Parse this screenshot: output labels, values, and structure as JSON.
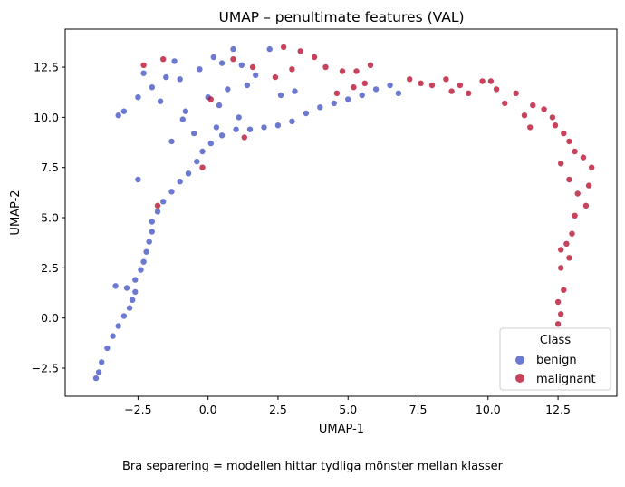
{
  "chart_data": {
    "type": "scatter",
    "title": "UMAP – penultimate features (VAL)",
    "xlabel": "UMAP-1",
    "ylabel": "UMAP-2",
    "xlim": [
      -5.1,
      14.6
    ],
    "ylim": [
      -3.9,
      14.4
    ],
    "xticks": [
      -2.5,
      0.0,
      2.5,
      5.0,
      7.5,
      10.0,
      12.5
    ],
    "xtick_labels": [
      "−2.5",
      "0.0",
      "2.5",
      "5.0",
      "7.5",
      "10.0",
      "12.5"
    ],
    "yticks": [
      -2.5,
      0.0,
      2.5,
      5.0,
      7.5,
      10.0,
      12.5
    ],
    "ytick_labels": [
      "−2.5",
      "0.0",
      "2.5",
      "5.0",
      "7.5",
      "10.0",
      "12.5"
    ],
    "grid": false,
    "legend": {
      "title": "Class",
      "placement": "lower right"
    },
    "series": [
      {
        "name": "benign",
        "color": "#3b4cc0",
        "points": [
          [
            -4.0,
            -3.0
          ],
          [
            -3.9,
            -2.7
          ],
          [
            -3.8,
            -2.2
          ],
          [
            -3.6,
            -1.5
          ],
          [
            -3.4,
            -0.9
          ],
          [
            -3.2,
            -0.4
          ],
          [
            -3.0,
            0.1
          ],
          [
            -2.8,
            0.5
          ],
          [
            -2.7,
            0.9
          ],
          [
            -2.6,
            1.3
          ],
          [
            -3.3,
            1.6
          ],
          [
            -2.9,
            1.5
          ],
          [
            -2.6,
            1.9
          ],
          [
            -2.4,
            2.4
          ],
          [
            -2.3,
            2.8
          ],
          [
            -2.2,
            3.3
          ],
          [
            -2.1,
            3.8
          ],
          [
            -2.0,
            4.3
          ],
          [
            -2.0,
            4.8
          ],
          [
            -1.8,
            5.3
          ],
          [
            -1.6,
            5.8
          ],
          [
            -1.3,
            6.3
          ],
          [
            -1.0,
            6.8
          ],
          [
            -0.7,
            7.2
          ],
          [
            -0.4,
            7.8
          ],
          [
            -0.2,
            8.3
          ],
          [
            0.1,
            8.7
          ],
          [
            0.5,
            9.1
          ],
          [
            1.0,
            9.4
          ],
          [
            1.5,
            9.4
          ],
          [
            2.0,
            9.5
          ],
          [
            2.5,
            9.6
          ],
          [
            3.0,
            9.8
          ],
          [
            3.5,
            10.2
          ],
          [
            4.0,
            10.5
          ],
          [
            4.5,
            10.7
          ],
          [
            5.0,
            10.9
          ],
          [
            5.5,
            11.1
          ],
          [
            6.0,
            11.4
          ],
          [
            6.5,
            11.6
          ],
          [
            6.8,
            11.2
          ],
          [
            -3.2,
            10.1
          ],
          [
            -3.0,
            10.3
          ],
          [
            -2.5,
            11.0
          ],
          [
            -2.3,
            12.2
          ],
          [
            -2.0,
            11.5
          ],
          [
            -1.7,
            10.8
          ],
          [
            -1.5,
            12.0
          ],
          [
            -1.2,
            12.8
          ],
          [
            -1.0,
            11.9
          ],
          [
            -0.8,
            10.3
          ],
          [
            -0.5,
            9.2
          ],
          [
            -0.3,
            12.4
          ],
          [
            0.0,
            11.0
          ],
          [
            0.2,
            13.0
          ],
          [
            0.3,
            9.5
          ],
          [
            0.5,
            12.7
          ],
          [
            0.7,
            11.4
          ],
          [
            0.9,
            13.4
          ],
          [
            1.2,
            12.6
          ],
          [
            1.4,
            11.6
          ],
          [
            1.7,
            12.1
          ],
          [
            2.2,
            13.4
          ],
          [
            2.6,
            11.1
          ],
          [
            3.1,
            11.3
          ],
          [
            -1.3,
            8.8
          ],
          [
            -0.9,
            9.9
          ],
          [
            0.4,
            10.6
          ],
          [
            1.1,
            10.0
          ],
          [
            -2.5,
            6.9
          ]
        ]
      },
      {
        "name": "malignant",
        "color": "#b40426",
        "points": [
          [
            2.7,
            13.5
          ],
          [
            3.3,
            13.3
          ],
          [
            3.8,
            13.0
          ],
          [
            4.2,
            12.5
          ],
          [
            4.8,
            12.3
          ],
          [
            5.3,
            12.3
          ],
          [
            5.8,
            12.6
          ],
          [
            5.2,
            11.5
          ],
          [
            4.6,
            11.2
          ],
          [
            5.6,
            11.7
          ],
          [
            3.0,
            12.4
          ],
          [
            2.4,
            12.0
          ],
          [
            7.2,
            11.9
          ],
          [
            7.6,
            11.7
          ],
          [
            8.0,
            11.6
          ],
          [
            8.5,
            11.9
          ],
          [
            9.0,
            11.6
          ],
          [
            9.3,
            11.2
          ],
          [
            9.8,
            11.8
          ],
          [
            10.3,
            11.4
          ],
          [
            10.6,
            10.7
          ],
          [
            11.0,
            11.2
          ],
          [
            11.3,
            10.1
          ],
          [
            11.6,
            10.6
          ],
          [
            12.0,
            10.4
          ],
          [
            12.3,
            10.0
          ],
          [
            12.4,
            9.6
          ],
          [
            12.7,
            9.2
          ],
          [
            12.9,
            8.8
          ],
          [
            13.1,
            8.3
          ],
          [
            13.4,
            8.0
          ],
          [
            13.7,
            7.5
          ],
          [
            12.6,
            7.7
          ],
          [
            12.9,
            6.9
          ],
          [
            13.2,
            6.2
          ],
          [
            13.5,
            5.6
          ],
          [
            13.6,
            6.6
          ],
          [
            13.1,
            5.1
          ],
          [
            13.0,
            4.2
          ],
          [
            12.8,
            3.7
          ],
          [
            12.6,
            3.4
          ],
          [
            12.9,
            3.0
          ],
          [
            12.6,
            2.5
          ],
          [
            12.7,
            1.4
          ],
          [
            12.5,
            0.8
          ],
          [
            12.6,
            0.2
          ],
          [
            12.5,
            -0.3
          ],
          [
            10.1,
            11.8
          ],
          [
            8.7,
            11.3
          ],
          [
            11.5,
            9.5
          ],
          [
            -0.2,
            7.5
          ],
          [
            -1.8,
            5.6
          ],
          [
            1.3,
            9.0
          ],
          [
            0.9,
            12.9
          ],
          [
            -2.3,
            12.6
          ],
          [
            -1.6,
            12.9
          ],
          [
            1.6,
            12.5
          ],
          [
            0.1,
            10.9
          ]
        ]
      }
    ]
  },
  "caption": "Bra separering = modellen hittar tydliga mönster mellan klasser"
}
